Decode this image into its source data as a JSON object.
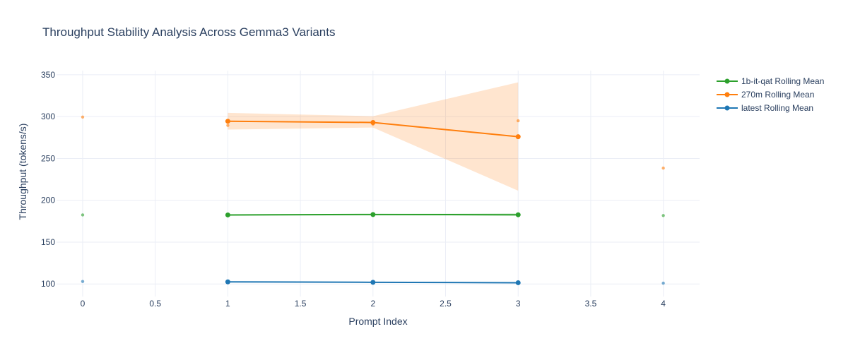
{
  "chart_data": {
    "type": "line",
    "title": "Throughput Stability Analysis Across Gemma3 Variants",
    "xlabel": "Prompt Index",
    "ylabel": "Throughput (tokens/s)",
    "xlim": [
      -0.18,
      4.25
    ],
    "ylim": [
      85,
      355
    ],
    "x_ticks": [
      0,
      0.5,
      1,
      1.5,
      2,
      2.5,
      3,
      3.5,
      4
    ],
    "y_ticks": [
      100,
      150,
      200,
      250,
      300,
      350
    ],
    "grid": true,
    "legend_position": "top-right",
    "series": [
      {
        "name": "1b-it-qat Rolling Mean",
        "color": "#2ca02c",
        "rolling_mean": {
          "x": [
            1,
            2,
            3
          ],
          "y": [
            182.5,
            183.0,
            182.7
          ]
        },
        "band": {
          "x": [
            1,
            2,
            3
          ],
          "upper": [
            183.0,
            183.5,
            184.5
          ],
          "lower": [
            182.0,
            182.6,
            181.5
          ]
        },
        "raw_points": {
          "x": [
            0,
            1,
            2,
            3,
            4
          ],
          "y": [
            182.5,
            182.8,
            183.3,
            182.3,
            181.8
          ]
        }
      },
      {
        "name": "270m Rolling Mean",
        "color": "#ff7f0e",
        "rolling_mean": {
          "x": [
            1,
            2,
            3
          ],
          "y": [
            294.5,
            293.0,
            276.0
          ]
        },
        "band": {
          "x": [
            1,
            2,
            3
          ],
          "upper": [
            304.5,
            300.5,
            341.0
          ],
          "lower": [
            284.5,
            287.0,
            211.5
          ]
        },
        "raw_points": {
          "x": [
            0,
            1,
            2,
            3,
            4
          ],
          "y": [
            299.5,
            289.5,
            291.0,
            295.0,
            238.5
          ]
        }
      },
      {
        "name": "latest Rolling Mean",
        "color": "#1f77b4",
        "rolling_mean": {
          "x": [
            1,
            2,
            3
          ],
          "y": [
            102.5,
            102.0,
            101.5
          ]
        },
        "band": {
          "x": [
            1,
            2,
            3
          ],
          "upper": [
            103.0,
            102.5,
            102.0
          ],
          "lower": [
            102.0,
            101.5,
            101.0
          ]
        },
        "raw_points": {
          "x": [
            0,
            1,
            2,
            3,
            4
          ],
          "y": [
            103.0,
            102.3,
            101.8,
            101.5,
            101.0
          ]
        }
      }
    ]
  }
}
